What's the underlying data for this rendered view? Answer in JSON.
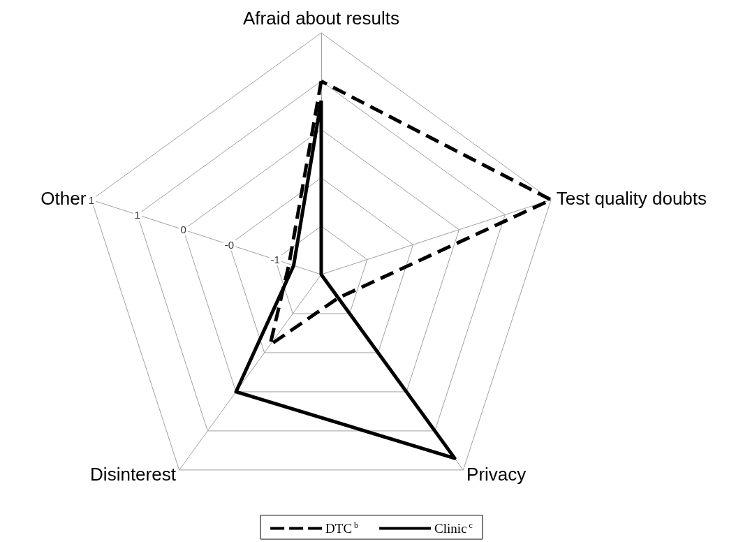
{
  "chart_data": {
    "type": "radar",
    "categories": [
      "Afraid about results",
      "Test quality doubts",
      "Privacy",
      "Disinterest",
      "Other"
    ],
    "series": [
      {
        "name": "DTC$^{b}$",
        "color": "#000000",
        "line_style": "dashed",
        "values": [
          0.5,
          1,
          -1.2,
          -0.6,
          -1.15
        ]
      },
      {
        "name": "Clinic$^{c}$",
        "color": "#000000",
        "line_style": "solid",
        "values": [
          0.3,
          -1.5,
          0.85,
          0,
          -1.2
        ]
      }
    ],
    "ylim": [
      -1.5,
      1
    ],
    "yticks": [
      {
        "value": -1,
        "label": "-1"
      },
      {
        "value": -0.5,
        "label": "-0"
      },
      {
        "value": 0,
        "label": "0"
      },
      {
        "value": 0.5,
        "label": "1"
      },
      {
        "value": 1,
        "label": "1"
      }
    ],
    "grid": true,
    "marker": "none",
    "legend": "bottom"
  }
}
